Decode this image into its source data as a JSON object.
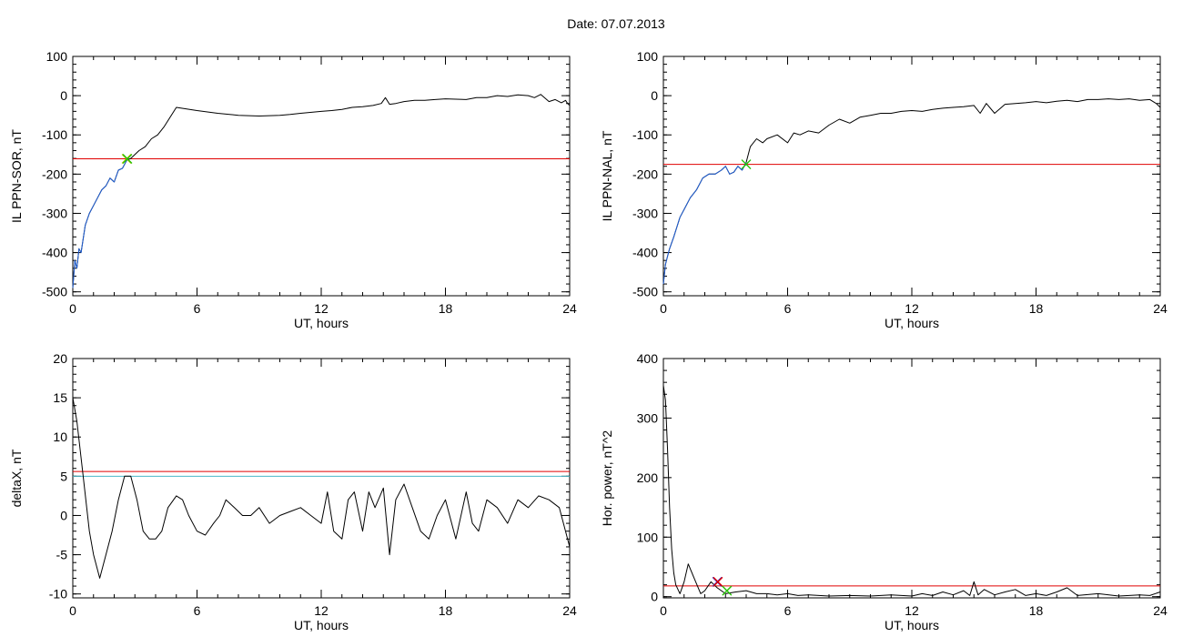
{
  "title": "Date:  07.07.2013",
  "colors": {
    "trace": "#000000",
    "highlight": "#1f5fd6",
    "threshold": "#e00000",
    "threshold2": "#49b7c8",
    "marker_green": "#22c000",
    "marker_yellow": "#c9c300",
    "marker_blue": "#2b2bd0",
    "marker_red": "#e00000"
  },
  "chart_data": [
    {
      "type": "line",
      "xlabel": "UT, hours",
      "ylabel": "IL PPN-SOR, nT",
      "xlim": [
        0,
        24
      ],
      "ylim": [
        -510,
        100
      ],
      "xticks": [
        0,
        6,
        12,
        18,
        24
      ],
      "yticks": [
        100,
        0,
        -100,
        -200,
        -300,
        -400,
        -500
      ],
      "series": [
        {
          "color": "trace",
          "x": [
            0.0,
            0.1,
            0.2,
            0.3,
            0.4,
            0.6,
            0.8,
            1.0,
            1.2,
            1.4,
            1.6,
            1.8,
            2.0,
            2.2,
            2.4,
            2.6,
            2.8,
            3.0,
            3.2,
            3.5,
            3.8,
            4.1,
            4.4,
            5.0,
            6.0,
            7.0,
            8.0,
            9.0,
            10.0,
            10.5,
            11.0,
            12.0,
            12.5,
            13.0,
            13.5,
            14.0,
            14.5,
            14.9,
            15.1,
            15.3,
            15.6,
            16.0,
            16.5,
            17.0,
            17.5,
            18.0,
            18.5,
            19.0,
            19.5,
            20.0,
            20.5,
            21.0,
            21.5,
            22.0,
            22.3,
            22.6,
            23.0,
            23.3,
            23.6,
            23.8,
            23.9,
            24.0
          ],
          "y": [
            -490,
            -420,
            -440,
            -390,
            -400,
            -330,
            -300,
            -280,
            -260,
            -240,
            -230,
            -210,
            -220,
            -190,
            -185,
            -165,
            -160,
            -150,
            -140,
            -130,
            -110,
            -100,
            -80,
            -30,
            -38,
            -45,
            -50,
            -52,
            -50,
            -48,
            -45,
            -40,
            -38,
            -35,
            -30,
            -28,
            -25,
            -20,
            -5,
            -22,
            -20,
            -15,
            -12,
            -12,
            -10,
            -8,
            -9,
            -10,
            -5,
            -5,
            0,
            -2,
            2,
            0,
            -5,
            3,
            -15,
            -10,
            -18,
            -12,
            -20,
            -25
          ]
        },
        {
          "color": "highlight",
          "x": [
            0.0,
            0.1,
            0.2,
            0.3,
            0.4,
            0.6,
            0.8,
            1.0,
            1.2,
            1.4,
            1.6,
            1.8,
            2.0,
            2.2,
            2.4,
            2.6,
            2.7
          ],
          "y": [
            -490,
            -420,
            -440,
            -390,
            -400,
            -330,
            -300,
            -280,
            -260,
            -240,
            -230,
            -210,
            -220,
            -190,
            -185,
            -165,
            -160
          ]
        }
      ],
      "hlines": [
        {
          "y": -161,
          "color": "threshold"
        }
      ],
      "markers": [
        {
          "x": 2.6,
          "y": -161,
          "color": "marker_yellow"
        },
        {
          "x": 2.6,
          "y": -161,
          "color": "marker_green"
        }
      ]
    },
    {
      "type": "line",
      "xlabel": "UT, hours",
      "ylabel": "IL PPN-NAL, nT",
      "xlim": [
        0,
        24
      ],
      "ylim": [
        -510,
        100
      ],
      "xticks": [
        0,
        6,
        12,
        18,
        24
      ],
      "yticks": [
        100,
        0,
        -100,
        -200,
        -300,
        -400,
        -500
      ],
      "series": [
        {
          "color": "trace",
          "x": [
            0.0,
            0.1,
            0.2,
            0.3,
            0.5,
            0.8,
            1.0,
            1.3,
            1.6,
            1.9,
            2.2,
            2.5,
            2.8,
            3.0,
            3.2,
            3.4,
            3.6,
            3.8,
            4.0,
            4.2,
            4.5,
            4.8,
            5.0,
            5.5,
            6.0,
            6.3,
            6.6,
            7.0,
            7.5,
            8.0,
            8.5,
            9.0,
            9.5,
            10.0,
            10.5,
            11.0,
            11.5,
            12.0,
            12.5,
            13.0,
            13.5,
            14.0,
            14.5,
            15.0,
            15.3,
            15.6,
            16.0,
            16.5,
            17.0,
            17.5,
            18.0,
            18.5,
            19.0,
            19.5,
            20.0,
            20.5,
            21.0,
            21.5,
            22.0,
            22.5,
            23.0,
            23.5,
            23.8,
            24.0
          ],
          "y": [
            -480,
            -430,
            -410,
            -390,
            -360,
            -310,
            -290,
            -260,
            -240,
            -210,
            -200,
            -200,
            -190,
            -180,
            -200,
            -195,
            -180,
            -190,
            -170,
            -130,
            -110,
            -120,
            -110,
            -100,
            -120,
            -95,
            -100,
            -90,
            -95,
            -75,
            -60,
            -70,
            -55,
            -50,
            -45,
            -45,
            -40,
            -38,
            -40,
            -35,
            -32,
            -30,
            -28,
            -25,
            -45,
            -20,
            -45,
            -22,
            -20,
            -18,
            -15,
            -18,
            -14,
            -12,
            -15,
            -10,
            -10,
            -8,
            -10,
            -8,
            -12,
            -10,
            -20,
            -30
          ]
        },
        {
          "color": "highlight",
          "x": [
            0.0,
            0.1,
            0.2,
            0.3,
            0.5,
            0.8,
            1.0,
            1.3,
            1.6,
            1.9,
            2.2,
            2.5,
            2.8,
            3.0,
            3.2,
            3.4,
            3.6,
            3.8,
            4.0
          ],
          "y": [
            -480,
            -430,
            -410,
            -390,
            -360,
            -310,
            -290,
            -260,
            -240,
            -210,
            -200,
            -200,
            -190,
            -180,
            -200,
            -195,
            -180,
            -190,
            -170
          ]
        }
      ],
      "hlines": [
        {
          "y": -175,
          "color": "threshold"
        }
      ],
      "markers": [
        {
          "x": 4.0,
          "y": -175,
          "color": "marker_green"
        }
      ]
    },
    {
      "type": "line",
      "xlabel": "UT, hours",
      "ylabel": "deltaX, nT",
      "xlim": [
        0,
        24
      ],
      "ylim": [
        -10.5,
        20
      ],
      "xticks": [
        0,
        6,
        12,
        18,
        24
      ],
      "yticks": [
        20,
        15,
        10,
        5,
        0,
        -5,
        -10
      ],
      "series": [
        {
          "color": "trace",
          "x": [
            0.0,
            0.2,
            0.5,
            0.8,
            1.0,
            1.3,
            1.6,
            1.9,
            2.2,
            2.5,
            2.8,
            3.1,
            3.4,
            3.7,
            4.0,
            4.3,
            4.6,
            5.0,
            5.3,
            5.6,
            6.0,
            6.4,
            6.8,
            7.1,
            7.4,
            7.8,
            8.2,
            8.6,
            9.0,
            9.5,
            10.0,
            10.5,
            11.0,
            11.5,
            12.0,
            12.3,
            12.6,
            13.0,
            13.3,
            13.6,
            14.0,
            14.3,
            14.6,
            15.0,
            15.3,
            15.6,
            16.0,
            16.4,
            16.8,
            17.2,
            17.6,
            18.0,
            18.5,
            19.0,
            19.3,
            19.6,
            20.0,
            20.5,
            21.0,
            21.5,
            22.0,
            22.5,
            23.0,
            23.5,
            24.0
          ],
          "y": [
            15,
            12,
            5,
            -2,
            -5,
            -8,
            -5,
            -2,
            2,
            5,
            5,
            2,
            -2,
            -3,
            -3,
            -2,
            1,
            2.5,
            2,
            0,
            -2,
            -2.5,
            -1,
            0,
            2,
            1,
            0,
            0,
            1,
            -1,
            0,
            0.5,
            1,
            0,
            -1,
            3,
            -2,
            -3,
            2,
            3,
            -2,
            3,
            1,
            3.5,
            -5,
            2,
            4,
            1,
            -2,
            -3,
            0,
            2,
            -3,
            3,
            -1,
            -2,
            2,
            1,
            -1,
            2,
            1,
            2.5,
            2,
            1,
            -4
          ]
        }
      ],
      "hlines": [
        {
          "y": 5.6,
          "color": "threshold"
        },
        {
          "y": 5.0,
          "color": "threshold2"
        }
      ],
      "markers": []
    },
    {
      "type": "line",
      "xlabel": "UT, hours",
      "ylabel": "Hor. power, nT^2",
      "xlim": [
        0,
        24
      ],
      "ylim": [
        -2,
        400
      ],
      "xticks": [
        0,
        6,
        12,
        18,
        24
      ],
      "yticks": [
        400,
        300,
        200,
        100,
        0
      ],
      "series": [
        {
          "color": "trace",
          "x": [
            0.0,
            0.1,
            0.2,
            0.3,
            0.4,
            0.5,
            0.6,
            0.8,
            1.0,
            1.2,
            1.5,
            1.8,
            2.0,
            2.3,
            2.6,
            3.0,
            3.5,
            4.0,
            4.5,
            5.0,
            5.5,
            6.0,
            6.5,
            7.0,
            8.0,
            9.0,
            10.0,
            11.0,
            12.0,
            12.5,
            13.0,
            13.5,
            14.0,
            14.5,
            14.8,
            15.0,
            15.2,
            15.5,
            16.0,
            16.5,
            17.0,
            17.5,
            18.0,
            18.5,
            19.0,
            19.5,
            20.0,
            21.0,
            22.0,
            23.0,
            23.5,
            24.0
          ],
          "y": [
            355,
            330,
            250,
            150,
            80,
            40,
            20,
            5,
            25,
            55,
            30,
            5,
            10,
            25,
            15,
            5,
            8,
            10,
            5,
            5,
            3,
            5,
            2,
            3,
            1,
            2,
            1,
            3,
            1,
            5,
            2,
            8,
            3,
            10,
            2,
            25,
            3,
            12,
            3,
            8,
            12,
            2,
            5,
            2,
            8,
            15,
            2,
            5,
            1,
            3,
            2,
            8
          ]
        }
      ],
      "hlines": [
        {
          "y": 18,
          "color": "threshold"
        }
      ],
      "markers": [
        {
          "x": 2.6,
          "y": 25,
          "color": "marker_blue"
        },
        {
          "x": 2.6,
          "y": 25,
          "color": "marker_red"
        },
        {
          "x": 3.0,
          "y": 10,
          "color": "marker_green"
        }
      ]
    }
  ]
}
